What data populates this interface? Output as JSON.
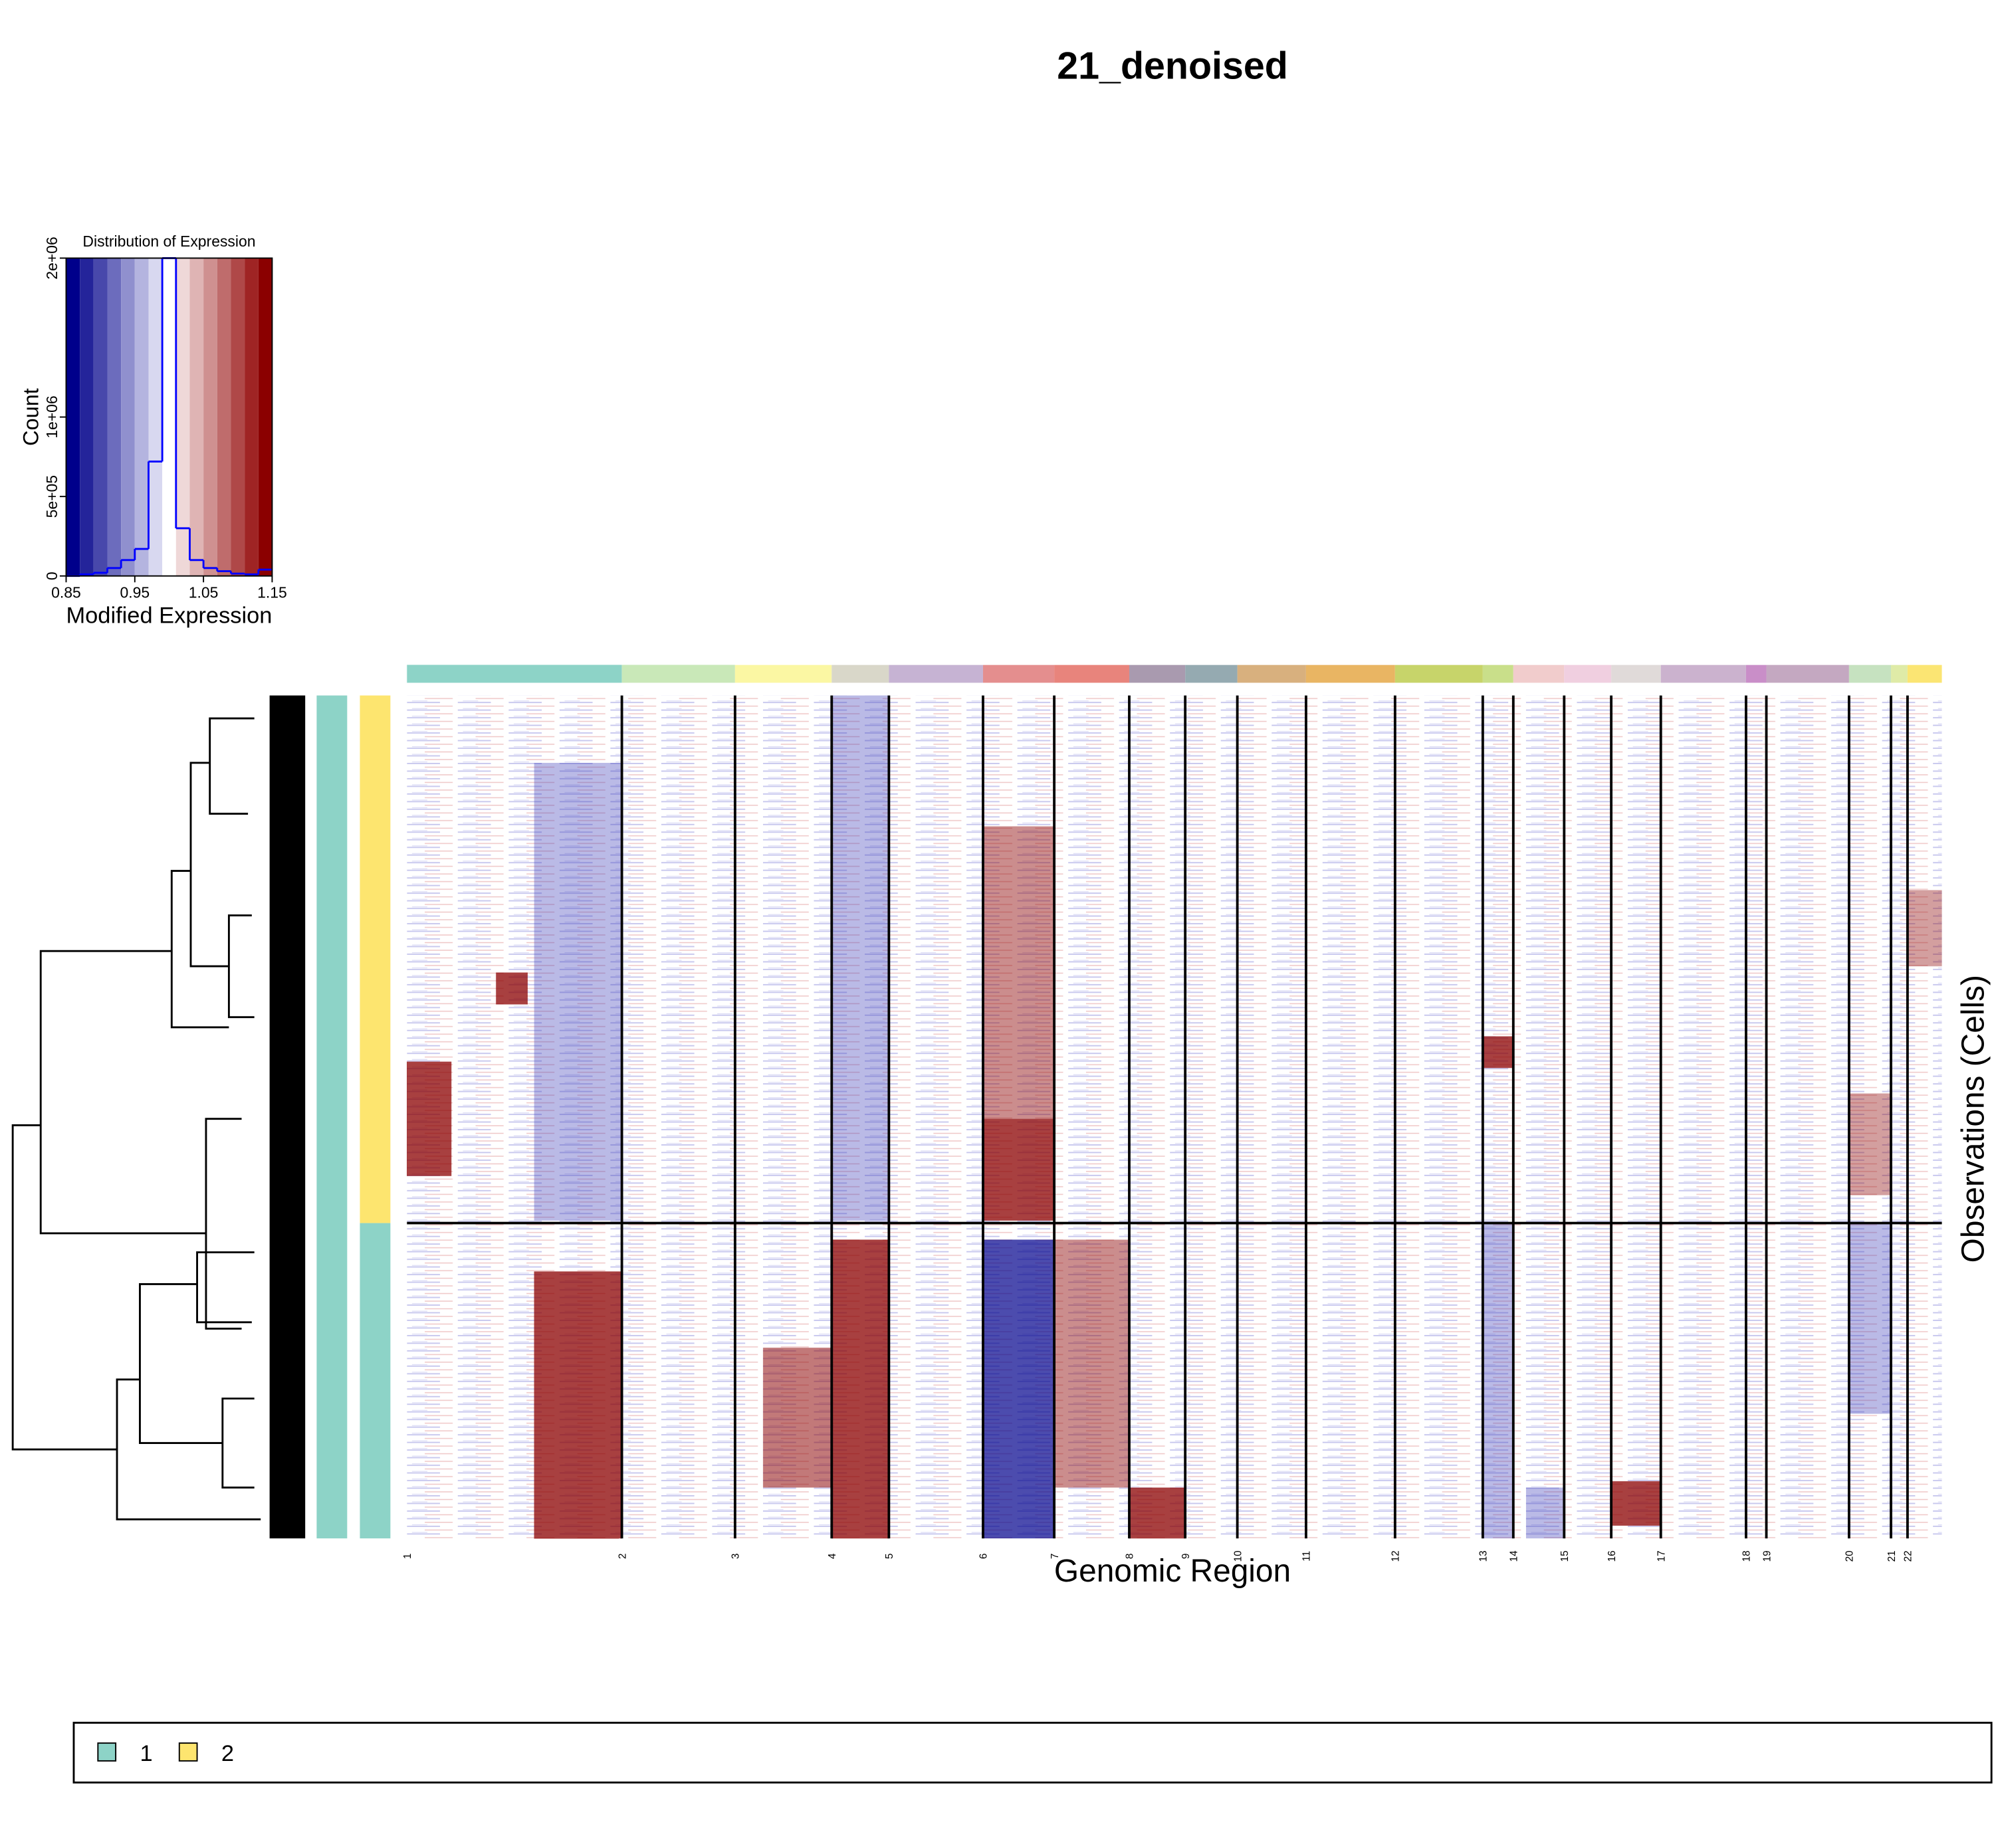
{
  "chart_data": [
    {
      "type": "histogram",
      "title": "Distribution of Expression",
      "x_label": "Modified Expression",
      "y_label": "Count",
      "bins": [
        0.85,
        0.87,
        0.89,
        0.91,
        0.93,
        0.95,
        0.97,
        0.99,
        1.01,
        1.03,
        1.05,
        1.07,
        1.09,
        1.11,
        1.13,
        1.15
      ],
      "values": [
        0,
        10000,
        20000,
        50000,
        100000,
        170000,
        720000,
        2000000,
        300000,
        100000,
        50000,
        30000,
        15000,
        10000,
        40000
      ],
      "colors": [
        "#00008b",
        "#24249a",
        "#4848ab",
        "#6c6cbd",
        "#9090ce",
        "#b4b4df",
        "#d8d8f0",
        "#ffffff",
        "#efd8d8",
        "#dfb4b4",
        "#cf9090",
        "#bf6c6c",
        "#af4848",
        "#9f2424",
        "#8b0000"
      ],
      "line_color": "#0000ff",
      "xlim": [
        0.85,
        1.15
      ],
      "xticks": [
        0.85,
        0.95,
        1.05,
        1.15
      ],
      "ylim": [
        0,
        2000000
      ],
      "yticks": [
        0,
        {
          "value": 500000,
          "label": "5e+05"
        },
        {
          "value": 1000000,
          "label": "1e+06"
        },
        {
          "value": 2000000,
          "label": "2e+06"
        }
      ]
    },
    {
      "type": "heatmap",
      "title": "21_denoised",
      "x_label": "Genomic Region",
      "y_label": "Observations (Cells)",
      "categories": [
        "1",
        "2",
        "3",
        "4",
        "5",
        "6",
        "7",
        "8",
        "9",
        "10",
        "11",
        "12",
        "13",
        "14",
        "15",
        "16",
        "17",
        "18",
        "19",
        "20",
        "21",
        "22"
      ],
      "values": [
        1183,
        623,
        532,
        315,
        518,
        392,
        413,
        308,
        287,
        378,
        490,
        483,
        168,
        280,
        259,
        273,
        469,
        112,
        455,
        231,
        91,
        189
      ],
      "colors": [
        "#8dd3c7",
        "#c9e8b8",
        "#fbf7a3",
        "#d9d7c9",
        "#c6b3d3",
        "#e48e8e",
        "#e8847c",
        "#a99aaf",
        "#95aab1",
        "#d8b07e",
        "#e9b563",
        "#c7d46a",
        "#c9df8a",
        "#f1cccc",
        "#f0cfe0",
        "#e0dad9",
        "#cbb2ce",
        "#c98ec8",
        "#c4a8c1",
        "#c6e2c0",
        "#dfeba7",
        "#fbe573"
      ],
      "legend": {
        "names": [
          "1",
          "2"
        ],
        "colors": [
          "#8dd3c7",
          "#fde56f"
        ]
      }
    }
  ]
}
